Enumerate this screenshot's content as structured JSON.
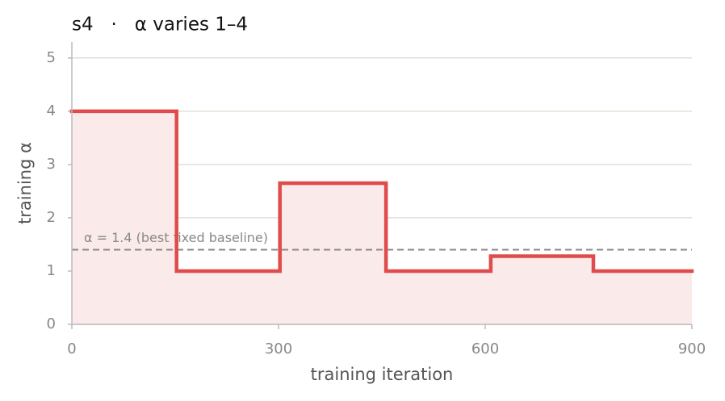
{
  "chart_data": {
    "type": "step",
    "title": "s4   ·   α varies 1–4",
    "x_label": "training iteration",
    "y_label": "training α",
    "x": [
      0,
      152,
      302,
      456,
      608,
      757
    ],
    "values": [
      4,
      1,
      2.65,
      1,
      1.28,
      1
    ],
    "color": "#e04b4b",
    "fill_color": "#fbeaea",
    "xlim": [
      0,
      900
    ],
    "xticks": [
      0,
      300,
      600,
      900
    ],
    "ylim": [
      0,
      5.3
    ],
    "yticks": [
      0,
      1,
      2,
      3,
      4,
      5
    ],
    "grid": true,
    "baseline": {
      "value": 1.4,
      "label": "α = 1.4 (best fixed baseline)"
    }
  }
}
